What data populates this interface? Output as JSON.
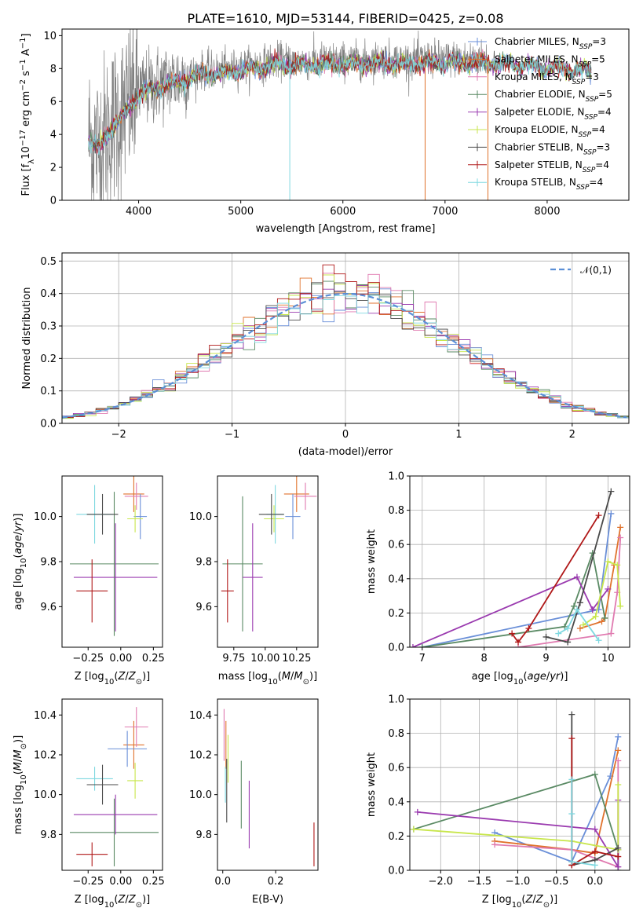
{
  "title": "PLATE=1610, MJD=53144, FIBERID=0425, z=0.08",
  "colors": {
    "chabrier_miles": "#6a8fd8",
    "salpeter_miles": "#e0722c",
    "kroupa_miles": "#e07ab0",
    "chabrier_elodie": "#5a8a64",
    "salpeter_elodie": "#9a3aaf",
    "kroupa_elodie": "#c8e64c",
    "chabrier_stelib": "#4a4a4a",
    "salpeter_stelib": "#b01818",
    "kroupa_stelib": "#7fd8e0",
    "spectrum_gray": "#808080",
    "normal_curve": "#5b8fd6"
  },
  "chart_data": [
    {
      "id": "spectrum",
      "type": "line",
      "title": "PLATE=1610, MJD=53144, FIBERID=0425, z=0.08",
      "xlabel": "wavelength [Angstrom, rest frame]",
      "ylabel": "Flux [f_λ 10^-17 erg cm^-2 s^-1 A^-1]",
      "xlim": [
        3250,
        8800
      ],
      "ylim": [
        0,
        10.4
      ],
      "xticks": [
        4000,
        5000,
        6000,
        7000,
        8000
      ],
      "yticks": [
        0,
        2,
        4,
        6,
        8,
        10
      ],
      "grid": false,
      "continuum": {
        "x": [
          3500,
          3600,
          3800,
          4000,
          4200,
          4400,
          4600,
          4800,
          5000,
          5200,
          5400,
          5600,
          5800,
          6000,
          6200,
          6400,
          6600,
          6800,
          7000,
          7200,
          7400,
          7600,
          7800,
          8000,
          8200,
          8400
        ],
        "y": [
          3.8,
          3.3,
          5.0,
          6.6,
          7.1,
          7.4,
          7.9,
          7.9,
          8.1,
          8.3,
          8.5,
          8.4,
          8.5,
          8.5,
          8.5,
          8.6,
          8.5,
          8.6,
          8.6,
          8.6,
          8.6,
          8.5,
          8.4,
          8.3,
          8.2,
          8.1
        ]
      },
      "data_xrange": [
        3510,
        7430
      ],
      "model_xrange": [
        3510,
        8430
      ],
      "legend_location": "upper right",
      "legend": [
        {
          "label": "Chabrier MILES, N",
          "sub": "SSP",
          "tail": "=3",
          "color_key": "chabrier_miles"
        },
        {
          "label": "Salpeter MILES, N",
          "sub": "SSP",
          "tail": "=5",
          "color_key": "salpeter_miles"
        },
        {
          "label": "Kroupa MILES, N",
          "sub": "SSP",
          "tail": "=3",
          "color_key": "kroupa_miles"
        },
        {
          "label": "Chabrier ELODIE, N",
          "sub": "SSP",
          "tail": "=5",
          "color_key": "chabrier_elodie"
        },
        {
          "label": "Salpeter ELODIE, N",
          "sub": "SSP",
          "tail": "=4",
          "color_key": "salpeter_elodie"
        },
        {
          "label": "Kroupa ELODIE, N",
          "sub": "SSP",
          "tail": "=4",
          "color_key": "kroupa_elodie"
        },
        {
          "label": "Chabrier STELIB, N",
          "sub": "SSP",
          "tail": "=3",
          "color_key": "chabrier_stelib"
        },
        {
          "label": "Salpeter STELIB, N",
          "sub": "SSP",
          "tail": "=4",
          "color_key": "salpeter_stelib"
        },
        {
          "label": "Kroupa STELIB, N",
          "sub": "SSP",
          "tail": "=4",
          "color_key": "kroupa_stelib"
        }
      ]
    },
    {
      "id": "residuals",
      "type": "line",
      "xlabel": "(data-model)/error",
      "ylabel": "Normed distribution",
      "xlim": [
        -2.5,
        2.5
      ],
      "ylim": [
        0,
        0.525
      ],
      "xticks": [
        -2,
        -1,
        0,
        1,
        2
      ],
      "yticks": [
        0.0,
        0.1,
        0.2,
        0.3,
        0.4,
        0.5
      ],
      "grid": true,
      "bin_width": 0.1,
      "gaussian_label": "𝒩(0,1)",
      "legend_location": "upper right"
    },
    {
      "id": "age_vs_Z",
      "type": "scatter",
      "xlabel": "Z [log10(Z/Z⊙)]",
      "ylabel": "age  [log10(age/yr)]",
      "xlim": [
        -0.45,
        0.32
      ],
      "ylim": [
        9.42,
        10.18
      ],
      "xticks": [
        -0.25,
        0.0,
        0.25
      ],
      "yticks": [
        9.6,
        9.8,
        10.0
      ],
      "grid": false,
      "points": [
        {
          "x": 0.1,
          "y": 10.1,
          "xerr": 0.08,
          "yerr": 0.08,
          "color_key": "salpeter_miles"
        },
        {
          "x": 0.12,
          "y": 10.09,
          "xerr": 0.09,
          "yerr": 0.06,
          "color_key": "kroupa_miles"
        },
        {
          "x": 0.15,
          "y": 10.0,
          "xerr": 0.05,
          "yerr": 0.1,
          "color_key": "chabrier_miles"
        },
        {
          "x": 0.11,
          "y": 9.99,
          "xerr": 0.06,
          "yerr": 0.06,
          "color_key": "kroupa_elodie"
        },
        {
          "x": -0.05,
          "y": 9.79,
          "xerr": 0.34,
          "yerr": 0.32,
          "color_key": "chabrier_elodie"
        },
        {
          "x": -0.04,
          "y": 9.73,
          "xerr": 0.32,
          "yerr": 0.24,
          "color_key": "salpeter_elodie"
        },
        {
          "x": -0.2,
          "y": 10.01,
          "xerr": 0.14,
          "yerr": 0.13,
          "color_key": "kroupa_stelib"
        },
        {
          "x": -0.14,
          "y": 10.01,
          "xerr": 0.12,
          "yerr": 0.09,
          "color_key": "chabrier_stelib"
        },
        {
          "x": -0.22,
          "y": 9.67,
          "xerr": 0.12,
          "yerr": 0.14,
          "color_key": "salpeter_stelib"
        }
      ]
    },
    {
      "id": "age_vs_mass",
      "type": "scatter",
      "xlabel": "mass [log10(M/M⊙)]",
      "ylabel": "",
      "xlim": [
        9.62,
        10.42
      ],
      "ylim": [
        9.42,
        10.18
      ],
      "xticks": [
        9.75,
        10.0,
        10.25
      ],
      "yticks": [
        9.6,
        9.8,
        10.0
      ],
      "grid": false,
      "points": [
        {
          "x": 10.25,
          "y": 10.1,
          "xerr": 0.1,
          "yerr": 0.08,
          "color_key": "salpeter_miles"
        },
        {
          "x": 10.32,
          "y": 10.09,
          "xerr": 0.09,
          "yerr": 0.06,
          "color_key": "kroupa_miles"
        },
        {
          "x": 10.22,
          "y": 10.0,
          "xerr": 0.06,
          "yerr": 0.1,
          "color_key": "chabrier_miles"
        },
        {
          "x": 10.07,
          "y": 9.99,
          "xerr": 0.08,
          "yerr": 0.06,
          "color_key": "kroupa_elodie"
        },
        {
          "x": 9.82,
          "y": 9.79,
          "xerr": 0.16,
          "yerr": 0.3,
          "color_key": "chabrier_elodie"
        },
        {
          "x": 9.9,
          "y": 9.73,
          "xerr": 0.08,
          "yerr": 0.24,
          "color_key": "salpeter_elodie"
        },
        {
          "x": 10.08,
          "y": 10.01,
          "xerr": 0.07,
          "yerr": 0.13,
          "color_key": "kroupa_stelib"
        },
        {
          "x": 10.05,
          "y": 10.01,
          "xerr": 0.1,
          "yerr": 0.09,
          "color_key": "chabrier_stelib"
        },
        {
          "x": 9.7,
          "y": 9.67,
          "xerr": 0.05,
          "yerr": 0.14,
          "color_key": "salpeter_stelib"
        }
      ]
    },
    {
      "id": "weight_vs_age",
      "type": "line",
      "xlabel": "age  [log10(age/yr)]",
      "ylabel": "mass weight",
      "xlim": [
        6.8,
        10.35
      ],
      "ylim": [
        0,
        1
      ],
      "xticks": [
        7,
        8,
        9,
        10
      ],
      "yticks": [
        0.0,
        0.2,
        0.4,
        0.6,
        0.8,
        1.0
      ],
      "grid": true,
      "series": [
        {
          "color_key": "chabrier_miles",
          "x": [
            7.0,
            9.85,
            10.05
          ],
          "y": [
            0.0,
            0.22,
            0.78
          ]
        },
        {
          "color_key": "salpeter_miles",
          "x": [
            9.55,
            9.9,
            9.95,
            10.1,
            10.2
          ],
          "y": [
            0.11,
            0.15,
            0.17,
            0.48,
            0.7
          ]
        },
        {
          "color_key": "kroupa_miles",
          "x": [
            8.55,
            10.05,
            10.15,
            10.2
          ],
          "y": [
            0.0,
            0.08,
            0.32,
            0.64
          ]
        },
        {
          "color_key": "chabrier_elodie",
          "x": [
            7.0,
            9.3,
            9.45,
            9.75,
            9.95
          ],
          "y": [
            0.0,
            0.12,
            0.24,
            0.55,
            0.17
          ]
        },
        {
          "color_key": "salpeter_elodie",
          "x": [
            6.85,
            9.5,
            9.75,
            10.0
          ],
          "y": [
            0.0,
            0.41,
            0.22,
            0.34
          ]
        },
        {
          "color_key": "kroupa_elodie",
          "x": [
            9.6,
            9.8,
            10.0,
            10.15,
            10.2
          ],
          "y": [
            0.13,
            0.18,
            0.5,
            0.48,
            0.24
          ]
        },
        {
          "color_key": "chabrier_stelib",
          "x": [
            9.0,
            9.35,
            9.55,
            10.05
          ],
          "y": [
            0.06,
            0.03,
            0.26,
            0.91
          ]
        },
        {
          "color_key": "salpeter_stelib",
          "x": [
            8.45,
            8.55,
            8.72,
            9.85
          ],
          "y": [
            0.08,
            0.03,
            0.11,
            0.77
          ]
        },
        {
          "color_key": "kroupa_stelib",
          "x": [
            9.2,
            9.35,
            9.5,
            9.85
          ],
          "y": [
            0.08,
            0.11,
            0.22,
            0.04
          ]
        }
      ]
    },
    {
      "id": "mass_vs_Z",
      "type": "scatter",
      "xlabel": "Z [log10(Z/Z⊙)]",
      "ylabel": "mass [log10(M/M⊙)]",
      "xlim": [
        -0.45,
        0.32
      ],
      "ylim": [
        9.62,
        10.48
      ],
      "xticks": [
        -0.25,
        0.0,
        0.25
      ],
      "yticks": [
        9.8,
        10.0,
        10.2,
        10.4
      ],
      "grid": false,
      "points": [
        {
          "x": 0.1,
          "y": 10.25,
          "xerr": 0.08,
          "yerr": 0.12,
          "color_key": "salpeter_miles"
        },
        {
          "x": 0.12,
          "y": 10.34,
          "xerr": 0.09,
          "yerr": 0.1,
          "color_key": "kroupa_miles"
        },
        {
          "x": 0.05,
          "y": 10.23,
          "xerr": 0.15,
          "yerr": 0.09,
          "color_key": "chabrier_miles"
        },
        {
          "x": 0.11,
          "y": 10.07,
          "xerr": 0.06,
          "yerr": 0.09,
          "color_key": "kroupa_elodie"
        },
        {
          "x": -0.05,
          "y": 9.81,
          "xerr": 0.34,
          "yerr": 0.17,
          "color_key": "chabrier_elodie"
        },
        {
          "x": -0.04,
          "y": 9.9,
          "xerr": 0.32,
          "yerr": 0.1,
          "color_key": "salpeter_elodie"
        },
        {
          "x": -0.2,
          "y": 10.08,
          "xerr": 0.14,
          "yerr": 0.06,
          "color_key": "kroupa_stelib"
        },
        {
          "x": -0.14,
          "y": 10.05,
          "xerr": 0.12,
          "yerr": 0.1,
          "color_key": "chabrier_stelib"
        },
        {
          "x": -0.22,
          "y": 9.7,
          "xerr": 0.12,
          "yerr": 0.06,
          "color_key": "salpeter_stelib"
        }
      ]
    },
    {
      "id": "mass_vs_ebv",
      "type": "scatter",
      "xlabel": "E(B-V)",
      "ylabel": "",
      "xlim": [
        -0.02,
        0.36
      ],
      "ylim": [
        9.62,
        10.48
      ],
      "xticks": [
        0.0,
        0.2
      ],
      "yticks": [
        9.8,
        10.0,
        10.2,
        10.4
      ],
      "grid": false,
      "points": [
        {
          "x": 0.005,
          "y": 10.3,
          "xerr": 0.0,
          "yerr": 0.13,
          "color_key": "kroupa_miles"
        },
        {
          "x": 0.012,
          "y": 10.25,
          "xerr": 0.0,
          "yerr": 0.12,
          "color_key": "salpeter_miles"
        },
        {
          "x": 0.02,
          "y": 10.18,
          "xerr": 0.0,
          "yerr": 0.12,
          "color_key": "kroupa_elodie"
        },
        {
          "x": 0.01,
          "y": 10.05,
          "xerr": 0.0,
          "yerr": 0.09,
          "color_key": "kroupa_stelib"
        },
        {
          "x": 0.015,
          "y": 10.02,
          "xerr": 0.0,
          "yerr": 0.16,
          "color_key": "chabrier_stelib"
        },
        {
          "x": 0.07,
          "y": 10.0,
          "xerr": 0.0,
          "yerr": 0.17,
          "color_key": "chabrier_elodie"
        },
        {
          "x": 0.1,
          "y": 9.9,
          "xerr": 0.0,
          "yerr": 0.17,
          "color_key": "salpeter_elodie"
        },
        {
          "x": 0.345,
          "y": 9.75,
          "xerr": 0.0,
          "yerr": 0.11,
          "color_key": "salpeter_stelib"
        }
      ]
    },
    {
      "id": "weight_vs_Z",
      "type": "line",
      "xlabel": "Z [log10(Z/Z⊙)]",
      "ylabel": "mass weight",
      "xlim": [
        -2.4,
        0.45
      ],
      "ylim": [
        0,
        1
      ],
      "xticks": [
        -2.0,
        -1.5,
        -1.0,
        -0.5,
        0.0
      ],
      "yticks": [
        0.0,
        0.2,
        0.4,
        0.6,
        0.8,
        1.0
      ],
      "grid": true,
      "series": [
        {
          "color_key": "chabrier_miles",
          "x": [
            -1.3,
            -0.3,
            0.2,
            0.3
          ],
          "y": [
            0.22,
            0.05,
            0.55,
            0.78
          ]
        },
        {
          "color_key": "salpeter_miles",
          "x": [
            -1.3,
            -0.3,
            0.0,
            0.3
          ],
          "y": [
            0.17,
            0.12,
            0.1,
            0.7
          ]
        },
        {
          "color_key": "kroupa_miles",
          "x": [
            -1.3,
            -0.3,
            0.3,
            0.3
          ],
          "y": [
            0.15,
            0.12,
            0.02,
            0.64
          ]
        },
        {
          "color_key": "chabrier_elodie",
          "x": [
            -2.35,
            0.0,
            0.3,
            0.3
          ],
          "y": [
            0.24,
            0.56,
            0.12,
            0.0
          ]
        },
        {
          "color_key": "salpeter_elodie",
          "x": [
            -2.3,
            0.0,
            0.3,
            0.3
          ],
          "y": [
            0.34,
            0.24,
            0.02,
            0.41
          ]
        },
        {
          "color_key": "kroupa_elodie",
          "x": [
            -2.35,
            -0.3,
            0.3,
            0.3
          ],
          "y": [
            0.24,
            0.17,
            0.12,
            0.5
          ]
        },
        {
          "color_key": "chabrier_stelib",
          "x": [
            -0.3,
            -0.3,
            0.0,
            0.3
          ],
          "y": [
            0.91,
            0.03,
            0.06,
            0.13
          ]
        },
        {
          "color_key": "salpeter_stelib",
          "x": [
            -0.3,
            -0.3,
            0.0,
            0.3
          ],
          "y": [
            0.77,
            0.03,
            0.11,
            0.08
          ]
        },
        {
          "color_key": "kroupa_stelib",
          "x": [
            -0.3,
            -0.3,
            -0.3,
            0.0
          ],
          "y": [
            0.53,
            0.33,
            0.05,
            0.03
          ]
        }
      ]
    }
  ]
}
